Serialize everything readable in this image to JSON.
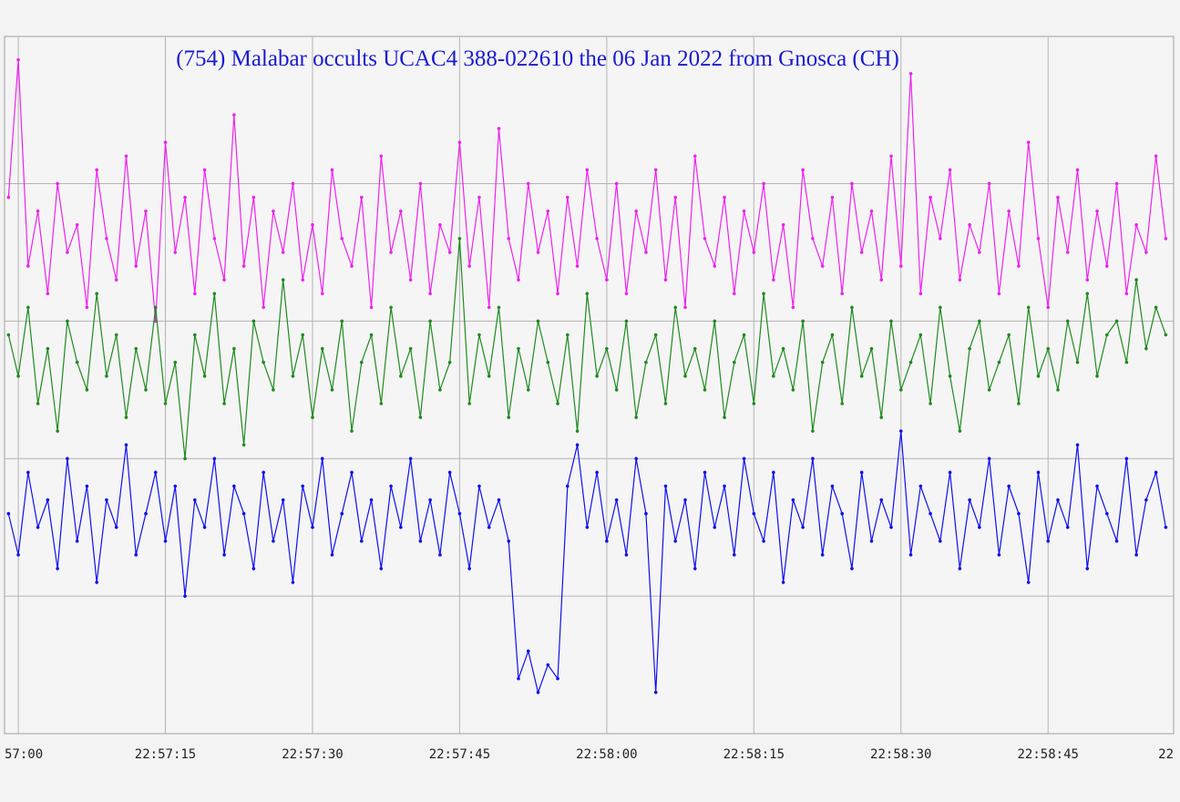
{
  "chart_data": {
    "type": "line",
    "title": "(754) Malabar occults UCAC4 388-022610 the 06 Jan 2022 from Gnosca (CH)",
    "x": [
      82619,
      82620,
      82621,
      82622,
      82623,
      82624,
      82625,
      82626,
      82627,
      82628,
      82629,
      82630,
      82631,
      82632,
      82633,
      82634,
      82635,
      82636,
      82637,
      82638,
      82639,
      82640,
      82641,
      82642,
      82643,
      82644,
      82645,
      82646,
      82647,
      82648,
      82649,
      82650,
      82651,
      82652,
      82653,
      82654,
      82655,
      82656,
      82657,
      82658,
      82659,
      82660,
      82661,
      82662,
      82663,
      82664,
      82665,
      82666,
      82667,
      82668,
      82669,
      82670,
      82671,
      82672,
      82673,
      82674,
      82675,
      82676,
      82677,
      82678,
      82679,
      82680,
      82681,
      82682,
      82683,
      82684,
      82685,
      82686,
      82687,
      82688,
      82689,
      82690,
      82691,
      82692,
      82693,
      82694,
      82695,
      82696,
      82697,
      82698,
      82699,
      82700,
      82701,
      82702,
      82703,
      82704,
      82705,
      82706,
      82707,
      82708,
      82709,
      82710,
      82711,
      82712,
      82713,
      82714,
      82715,
      82716,
      82717,
      82718,
      82719,
      82720,
      82721,
      82722,
      82723,
      82724,
      82725,
      82726,
      82727,
      82728,
      82729,
      82730,
      82731,
      82732,
      82733,
      82734,
      82735,
      82736,
      82737
    ],
    "series": [
      {
        "color": "#ee22ee",
        "values": [
          3.9,
          4.9,
          3.4,
          3.8,
          3.2,
          4.0,
          3.5,
          3.7,
          3.1,
          4.1,
          3.6,
          3.3,
          4.2,
          3.4,
          3.8,
          3.0,
          4.3,
          3.5,
          3.9,
          3.2,
          4.1,
          3.6,
          3.3,
          4.5,
          3.4,
          3.9,
          3.1,
          3.8,
          3.5,
          4.0,
          3.3,
          3.7,
          3.2,
          4.1,
          3.6,
          3.4,
          3.9,
          3.1,
          4.2,
          3.5,
          3.8,
          3.3,
          4.0,
          3.2,
          3.7,
          3.5,
          4.3,
          3.4,
          3.9,
          3.1,
          4.4,
          3.6,
          3.3,
          4.0,
          3.5,
          3.8,
          3.2,
          3.9,
          3.4,
          4.1,
          3.6,
          3.3,
          4.0,
          3.2,
          3.8,
          3.5,
          4.1,
          3.3,
          3.9,
          3.1,
          4.2,
          3.6,
          3.4,
          3.9,
          3.2,
          3.8,
          3.5,
          4.0,
          3.3,
          3.7,
          3.1,
          4.1,
          3.6,
          3.4,
          3.9,
          3.2,
          4.0,
          3.5,
          3.8,
          3.3,
          4.2,
          3.4,
          4.8,
          3.2,
          3.9,
          3.6,
          4.1,
          3.3,
          3.7,
          3.5,
          4.0,
          3.2,
          3.8,
          3.4,
          4.3,
          3.6,
          3.1,
          3.9,
          3.5,
          4.1,
          3.3,
          3.8,
          3.4,
          4.0,
          3.2,
          3.7,
          3.5,
          4.2,
          3.6
        ]
      },
      {
        "color": "#1f8a1f",
        "values": [
          2.9,
          2.6,
          3.1,
          2.4,
          2.8,
          2.2,
          3.0,
          2.7,
          2.5,
          3.2,
          2.6,
          2.9,
          2.3,
          2.8,
          2.5,
          3.1,
          2.4,
          2.7,
          2.0,
          2.9,
          2.6,
          3.2,
          2.4,
          2.8,
          2.1,
          3.0,
          2.7,
          2.5,
          3.3,
          2.6,
          2.9,
          2.3,
          2.8,
          2.5,
          3.0,
          2.2,
          2.7,
          2.9,
          2.4,
          3.1,
          2.6,
          2.8,
          2.3,
          3.0,
          2.5,
          2.7,
          3.6,
          2.4,
          2.9,
          2.6,
          3.1,
          2.3,
          2.8,
          2.5,
          3.0,
          2.7,
          2.4,
          2.9,
          2.2,
          3.2,
          2.6,
          2.8,
          2.5,
          3.0,
          2.3,
          2.7,
          2.9,
          2.4,
          3.1,
          2.6,
          2.8,
          2.5,
          3.0,
          2.3,
          2.7,
          2.9,
          2.4,
          3.2,
          2.6,
          2.8,
          2.5,
          3.0,
          2.2,
          2.7,
          2.9,
          2.4,
          3.1,
          2.6,
          2.8,
          2.3,
          3.0,
          2.5,
          2.7,
          2.9,
          2.4,
          3.1,
          2.6,
          2.2,
          2.8,
          3.0,
          2.5,
          2.7,
          2.9,
          2.4,
          3.1,
          2.6,
          2.8,
          2.5,
          3.0,
          2.7,
          3.2,
          2.6,
          2.9,
          3.0,
          2.7,
          3.3,
          2.8,
          3.1,
          2.9
        ]
      },
      {
        "color": "#1010ee",
        "values": [
          1.6,
          1.3,
          1.9,
          1.5,
          1.7,
          1.2,
          2.0,
          1.4,
          1.8,
          1.1,
          1.7,
          1.5,
          2.1,
          1.3,
          1.6,
          1.9,
          1.4,
          1.8,
          1.0,
          1.7,
          1.5,
          2.0,
          1.3,
          1.8,
          1.6,
          1.2,
          1.9,
          1.4,
          1.7,
          1.1,
          1.8,
          1.5,
          2.0,
          1.3,
          1.6,
          1.9,
          1.4,
          1.7,
          1.2,
          1.8,
          1.5,
          2.0,
          1.4,
          1.7,
          1.3,
          1.9,
          1.6,
          1.2,
          1.8,
          1.5,
          1.7,
          1.4,
          0.4,
          0.6,
          0.3,
          0.5,
          0.4,
          1.8,
          2.1,
          1.5,
          1.9,
          1.4,
          1.7,
          1.3,
          2.0,
          1.6,
          0.3,
          1.8,
          1.4,
          1.7,
          1.2,
          1.9,
          1.5,
          1.8,
          1.3,
          2.0,
          1.6,
          1.4,
          1.9,
          1.1,
          1.7,
          1.5,
          2.0,
          1.3,
          1.8,
          1.6,
          1.2,
          1.9,
          1.4,
          1.7,
          1.5,
          2.2,
          1.3,
          1.8,
          1.6,
          1.4,
          1.9,
          1.2,
          1.7,
          1.5,
          2.0,
          1.3,
          1.8,
          1.6,
          1.1,
          1.9,
          1.4,
          1.7,
          1.5,
          2.1,
          1.2,
          1.8,
          1.6,
          1.4,
          2.0,
          1.3,
          1.7,
          1.9,
          1.5
        ]
      }
    ],
    "xlim": [
      82618.6,
      82737.8
    ],
    "xticks": [
      {
        "value": 82620,
        "label": "57:00"
      },
      {
        "value": 82635,
        "label": "22:57:15"
      },
      {
        "value": 82650,
        "label": "22:57:30"
      },
      {
        "value": 82665,
        "label": "22:57:45"
      },
      {
        "value": 82680,
        "label": "22:58:00"
      },
      {
        "value": 82695,
        "label": "22:58:15"
      },
      {
        "value": 82710,
        "label": "22:58:30"
      },
      {
        "value": 82725,
        "label": "22:58:45"
      },
      {
        "value": 82740,
        "label": "22"
      }
    ],
    "ylim": [
      0,
      5.07
    ],
    "yticks": [
      1,
      2,
      3,
      4
    ],
    "grid": true
  }
}
